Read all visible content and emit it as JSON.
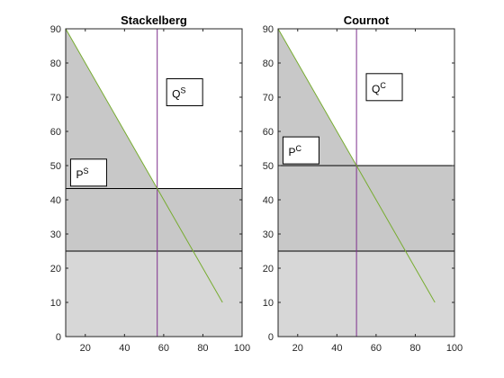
{
  "chart_data": [
    {
      "type": "line",
      "title": "Stackelberg",
      "xlabel": "",
      "ylabel": "",
      "xlim": [
        10,
        100
      ],
      "ylim": [
        0,
        90
      ],
      "xticks": [
        20,
        40,
        60,
        80,
        100
      ],
      "yticks": [
        0,
        10,
        20,
        30,
        40,
        50,
        60,
        70,
        80,
        90
      ],
      "grid": false,
      "demand_line": {
        "x": [
          10,
          90
        ],
        "y": [
          90,
          10
        ]
      },
      "quantity_line_x": 56.7,
      "price_level": 43.3,
      "cost_level": 25,
      "shaded_regions": [
        {
          "name": "consumer-surplus",
          "type": "polygon",
          "x": [
            10,
            56.7,
            10
          ],
          "y": [
            90,
            43.3,
            43.3
          ]
        },
        {
          "name": "profit",
          "type": "rect",
          "x": [
            10,
            100
          ],
          "y": [
            25,
            43.3
          ]
        },
        {
          "name": "cost",
          "type": "rect",
          "x": [
            10,
            100
          ],
          "y": [
            0,
            25
          ]
        }
      ],
      "annotations": [
        {
          "text": "Q",
          "sup": "S",
          "at_x": 61.5,
          "at_y": 67.5
        },
        {
          "text": "P",
          "sup": "S",
          "at_x": 12.5,
          "at_y": 44
        }
      ]
    },
    {
      "type": "line",
      "title": "Cournot",
      "xlabel": "",
      "ylabel": "",
      "xlim": [
        10,
        100
      ],
      "ylim": [
        0,
        90
      ],
      "xticks": [
        20,
        40,
        60,
        80,
        100
      ],
      "yticks": [
        0,
        10,
        20,
        30,
        40,
        50,
        60,
        70,
        80,
        90
      ],
      "grid": false,
      "demand_line": {
        "x": [
          10,
          90
        ],
        "y": [
          90,
          10
        ]
      },
      "quantity_line_x": 50,
      "price_level": 50,
      "cost_level": 25,
      "shaded_regions": [
        {
          "name": "consumer-surplus",
          "type": "polygon",
          "x": [
            10,
            50,
            10
          ],
          "y": [
            90,
            50,
            50
          ]
        },
        {
          "name": "profit",
          "type": "rect",
          "x": [
            10,
            100
          ],
          "y": [
            25,
            50
          ]
        },
        {
          "name": "cost",
          "type": "rect",
          "x": [
            10,
            100
          ],
          "y": [
            0,
            25
          ]
        }
      ],
      "annotations": [
        {
          "text": "Q",
          "sup": "C",
          "at_x": 55,
          "at_y": 69
        },
        {
          "text": "P",
          "sup": "C",
          "at_x": 12.5,
          "at_y": 50.5
        }
      ]
    }
  ],
  "colors": {
    "region_dark": "#c8c8c8",
    "region_light": "#d7d7d7",
    "demand_line": "#77ac30",
    "quantity_line": "#7e2f8e",
    "horizontal_line": "#000000",
    "axis": "#262626",
    "box_fill": "#ffffff"
  }
}
